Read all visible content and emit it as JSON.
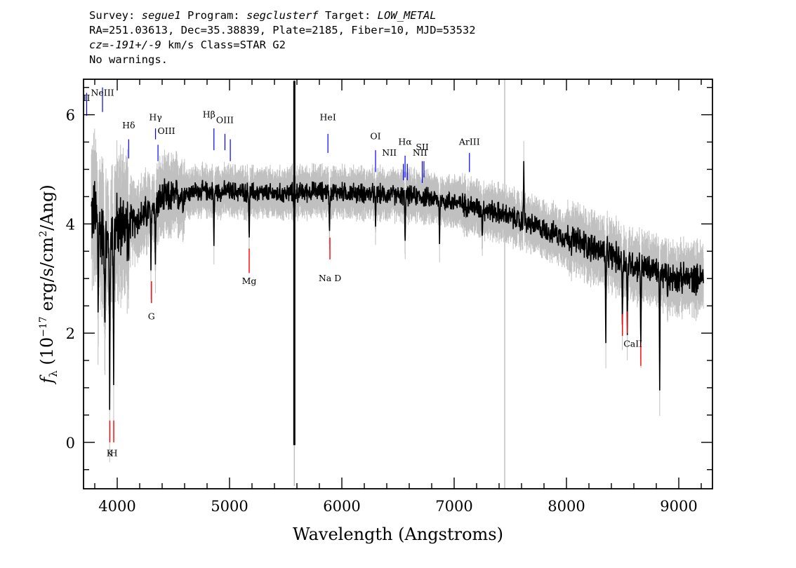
{
  "header": {
    "line1": {
      "survey_label": "Survey: ",
      "survey": "segue1",
      "program_label": " Program: ",
      "program": "segclusterf",
      "target_label": " Target: ",
      "target": "LOW_METAL"
    },
    "line2": "RA=251.03613, Dec=35.38839, Plate=2185, Fiber=10, MJD=53532",
    "line3": {
      "cz_label": "cz=",
      "cz": "-191+/-9",
      "cz_units": " km/s Class=STAR G2"
    },
    "line4": "No warnings."
  },
  "chart_data": {
    "type": "line",
    "xlabel": "Wavelength (Angstroms)",
    "ylabel_parts": {
      "f": "f",
      "sub": "λ",
      "open": " (10",
      "exp1": "−17",
      "mid": " erg/s/cm",
      "exp2": "2",
      "close": "/Ang)"
    },
    "xlim": [
      3700,
      9300
    ],
    "ylim": [
      -0.85,
      6.65
    ],
    "xticks": [
      4000,
      5000,
      6000,
      7000,
      8000,
      9000
    ],
    "yticks": [
      0,
      2,
      4,
      6
    ],
    "colors": {
      "flux": "#000000",
      "error": "#c0c0c0",
      "emission": "#0000ff",
      "absorption": "#ff0000"
    },
    "continuum_points": [
      [
        3800,
        4.2
      ],
      [
        3900,
        3.6
      ],
      [
        4000,
        3.95
      ],
      [
        4200,
        4.1
      ],
      [
        4400,
        4.45
      ],
      [
        4700,
        4.6
      ],
      [
        5000,
        4.6
      ],
      [
        5400,
        4.55
      ],
      [
        5800,
        4.6
      ],
      [
        6300,
        4.55
      ],
      [
        6700,
        4.5
      ],
      [
        7000,
        4.4
      ],
      [
        7400,
        4.2
      ],
      [
        7800,
        3.9
      ],
      [
        8200,
        3.6
      ],
      [
        8600,
        3.25
      ],
      [
        9000,
        3.0
      ],
      [
        9220,
        3.0
      ]
    ],
    "spikes": [
      [
        3830,
        2.15
      ],
      [
        3890,
        1.9
      ],
      [
        3933,
        0.45
      ],
      [
        3968,
        1.05
      ],
      [
        4101,
        3.1
      ],
      [
        4300,
        3.1
      ],
      [
        4340,
        3.2
      ],
      [
        4861,
        3.55
      ],
      [
        5175,
        3.6
      ],
      [
        5577,
        -0.05
      ],
      [
        5577,
        6.6
      ],
      [
        5890,
        3.75
      ],
      [
        6300,
        3.95
      ],
      [
        6563,
        3.5
      ],
      [
        6870,
        3.6
      ],
      [
        7250,
        3.75
      ],
      [
        7590,
        3.85
      ],
      [
        7620,
        5.15
      ],
      [
        8350,
        1.65
      ],
      [
        8498,
        2.1
      ],
      [
        8542,
        1.9
      ],
      [
        8662,
        1.55
      ],
      [
        8830,
        0.95
      ],
      [
        8900,
        2.6
      ]
    ],
    "emission_lines": [
      {
        "label": "II",
        "x": 3728
      },
      {
        "label": "NeIII",
        "x": 3869
      },
      {
        "label": "Hδ",
        "x": 4102
      },
      {
        "label": "Hγ",
        "x": 4341
      },
      {
        "label": "OIII",
        "x": 4363
      },
      {
        "label": "Hβ",
        "x": 4861
      },
      {
        "label": "OIII",
        "x": 4959
      },
      {
        "label": "OIII",
        "x": 5007
      },
      {
        "label": "HeI",
        "x": 5876
      },
      {
        "label": "OI",
        "x": 6300
      },
      {
        "label": "NII",
        "x": 6548
      },
      {
        "label": "Hα",
        "x": 6563
      },
      {
        "label": "NII",
        "x": 6583
      },
      {
        "label": "SII",
        "x": 6716
      },
      {
        "label": "SII",
        "x": 6731
      },
      {
        "label": "ArIII",
        "x": 7136
      }
    ],
    "absorption_lines": [
      {
        "label": "K",
        "x": 3934
      },
      {
        "label": "H",
        "x": 3969
      },
      {
        "label": "G",
        "x": 4305
      },
      {
        "label": "Mg",
        "x": 5175
      },
      {
        "label": "Na D",
        "x": 5894
      },
      {
        "label": "CaII",
        "x": 8498
      },
      {
        "label": "CaII",
        "x": 8542
      },
      {
        "label": "CaII",
        "x": 8662
      }
    ]
  }
}
